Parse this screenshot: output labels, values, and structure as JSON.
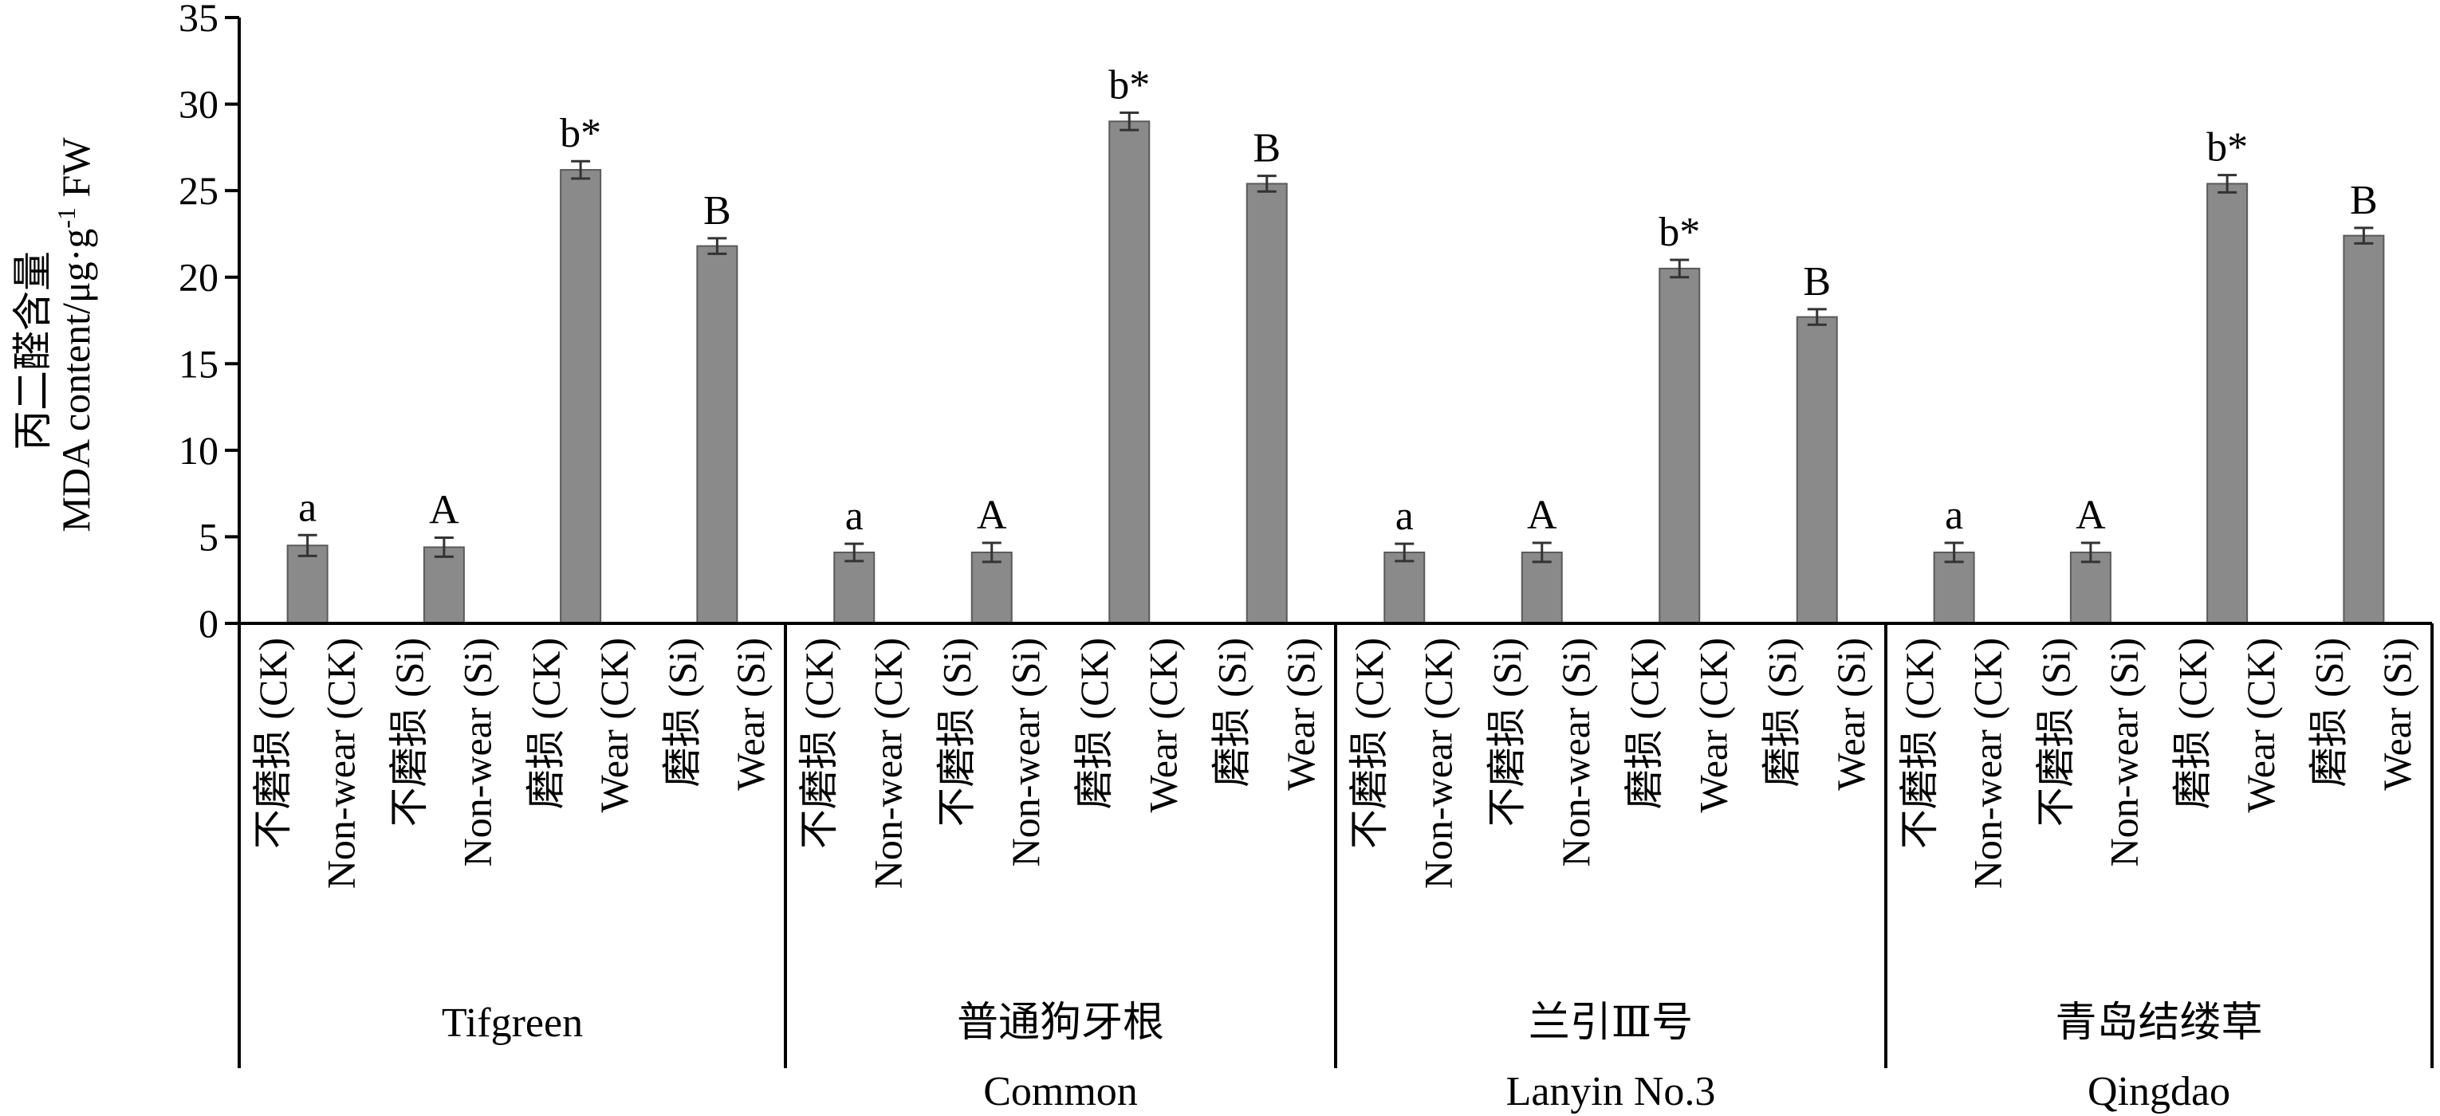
{
  "chart_data": {
    "type": "bar",
    "ylabel_cn": "丙二醛含量",
    "ylabel_en": "MDA content/μg·g",
    "ylabel_sup": "-1",
    "ylabel_tail": " FW",
    "ylim": [
      0,
      35
    ],
    "yticks": [
      0,
      5,
      10,
      15,
      20,
      25,
      30,
      35
    ],
    "bar_color": "#8a8a8a",
    "treatments": [
      {
        "cn": "不磨损",
        "en": "Non-wear",
        "suffix": "(CK)"
      },
      {
        "cn": "不磨损",
        "en": "Non-wear",
        "suffix": "(Si)"
      },
      {
        "cn": "磨损",
        "en": "Wear",
        "suffix": "(CK)"
      },
      {
        "cn": "磨损",
        "en": "Wear",
        "suffix": "(Si)"
      }
    ],
    "groups": [
      {
        "cn": "Tifgreen",
        "en": "",
        "values": [
          4.5,
          4.4,
          26.2,
          21.8
        ],
        "errors": [
          0.6,
          0.55,
          0.5,
          0.45
        ],
        "labels": [
          "a",
          "A",
          "b*",
          "B"
        ]
      },
      {
        "cn": "普通狗牙根",
        "en": "Common",
        "values": [
          4.1,
          4.1,
          29.0,
          25.4
        ],
        "errors": [
          0.5,
          0.55,
          0.5,
          0.45
        ],
        "labels": [
          "a",
          "A",
          "b*",
          "B"
        ]
      },
      {
        "cn": "兰引Ⅲ号",
        "en": "Lanyin No.3",
        "values": [
          4.1,
          4.1,
          20.5,
          17.7
        ],
        "errors": [
          0.5,
          0.55,
          0.5,
          0.45
        ],
        "labels": [
          "a",
          "A",
          "b*",
          "B"
        ]
      },
      {
        "cn": "青岛结缕草",
        "en": "Qingdao",
        "values": [
          4.1,
          4.1,
          25.4,
          22.4
        ],
        "errors": [
          0.55,
          0.55,
          0.5,
          0.45
        ],
        "labels": [
          "a",
          "A",
          "b*",
          "B"
        ]
      }
    ]
  }
}
